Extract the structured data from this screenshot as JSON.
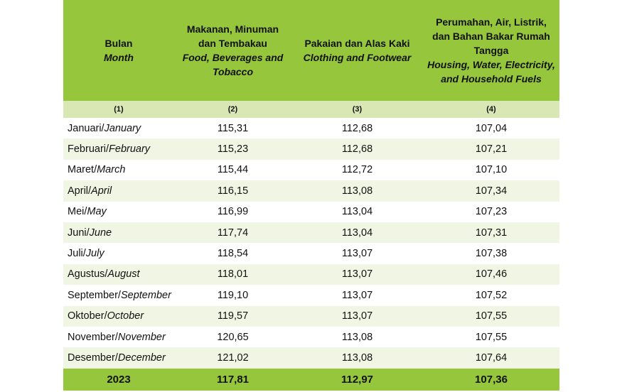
{
  "header": {
    "col1": {
      "id": "Bulan",
      "en": "Month"
    },
    "col2": {
      "id": "Makanan, Minuman dan Tembakau",
      "en": "Food, Beverages and Tobacco"
    },
    "col3": {
      "id": "Pakaian dan Alas Kaki",
      "en": "Clothing and Footwear"
    },
    "col4": {
      "id": "Perumahan, Air, Listrik, dan Bahan Bakar Rumah Tangga",
      "en": "Housing, Water, Electricity, and Household Fuels"
    }
  },
  "col_numbers": [
    "(1)",
    "(2)",
    "(3)",
    "(4)"
  ],
  "rows": [
    {
      "id": "Januari/",
      "en": "January",
      "food": "115,31",
      "clothing": "112,68",
      "housing": "107,04"
    },
    {
      "id": "Februari/",
      "en": "February",
      "food": "115,23",
      "clothing": "112,68",
      "housing": "107,21"
    },
    {
      "id": "Maret/",
      "en": "March",
      "food": "115,44",
      "clothing": "112,72",
      "housing": "107,10"
    },
    {
      "id": "April/",
      "en": "April",
      "food": "116,15",
      "clothing": "113,08",
      "housing": "107,34"
    },
    {
      "id": "Mei/",
      "en": "May",
      "food": "116,99",
      "clothing": "113,04",
      "housing": "107,23"
    },
    {
      "id": "Juni/",
      "en": "June",
      "food": "117,74",
      "clothing": "113,04",
      "housing": "107,31"
    },
    {
      "id": "Juli/",
      "en": "July",
      "food": "118,54",
      "clothing": "113,07",
      "housing": "107,38"
    },
    {
      "id": "Agustus/",
      "en": "August",
      "food": "118,01",
      "clothing": "113,07",
      "housing": "107,46"
    },
    {
      "id": "September/",
      "en": "September",
      "food": "119,10",
      "clothing": "113,07",
      "housing": "107,52"
    },
    {
      "id": "Oktober/",
      "en": "October",
      "food": "119,57",
      "clothing": "113,07",
      "housing": "107,55"
    },
    {
      "id": "November/",
      "en": "November",
      "food": "120,65",
      "clothing": "113,08",
      "housing": "107,55"
    },
    {
      "id": "Desember/",
      "en": "December",
      "food": "121,02",
      "clothing": "113,08",
      "housing": "107,64"
    }
  ],
  "total": {
    "label": "2023",
    "food": "117,81",
    "clothing": "112,97",
    "housing": "107,36"
  },
  "colors": {
    "header_green": "#95c63b",
    "subheader_green": "#d9e7b4",
    "stripe": "#f1f6e4"
  }
}
